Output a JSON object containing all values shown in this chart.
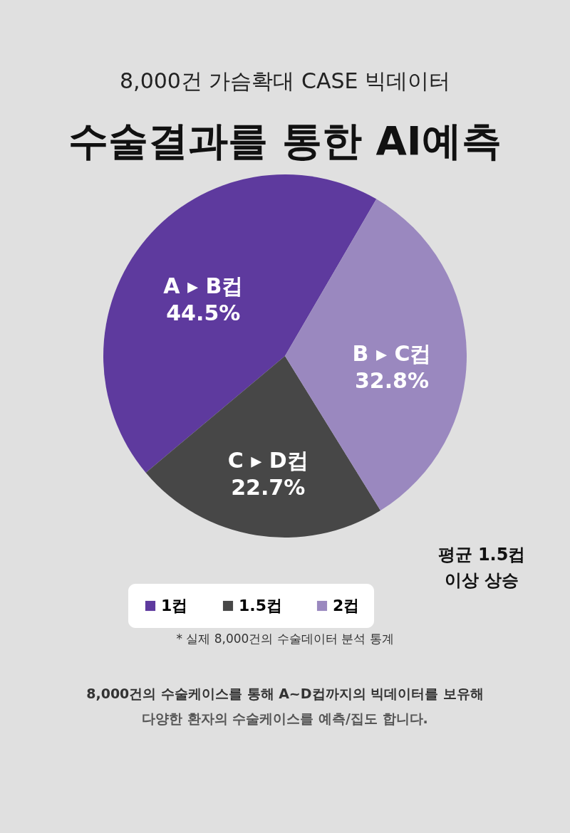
{
  "chart_data": {
    "type": "pie",
    "subtitle": "8,000건 가슴확대 CASE 빅데이터",
    "title": "수술결과를 통한 AI예측",
    "categories": [
      "1컵",
      "1.5컵",
      "2컵"
    ],
    "values": [
      44.5,
      22.7,
      32.8
    ],
    "colors": [
      "#5e3a9e",
      "#474747",
      "#9a88bf"
    ],
    "value_labels": [
      "A ▸ B컵\n44.5%",
      "C ▸ D컵\n22.7%",
      "B ▸ C컵\n32.8%"
    ],
    "legend": "bottom",
    "annotations": [
      "평균 1.5컵\n이상 상승",
      "* 실제 8,000건의 수술데이터 분석 통계",
      "8,000건의 수술케이스를 통해 A~D컵까지의 빅데이터를 보유해",
      "다양한 환자의 수술케이스를 예측/집도 합니다."
    ]
  }
}
